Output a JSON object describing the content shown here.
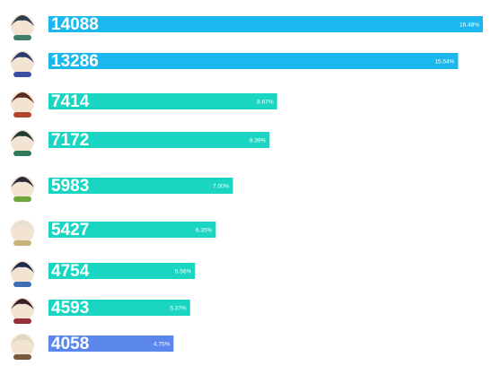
{
  "chart_data": {
    "type": "bar",
    "orientation": "horizontal",
    "categories": [
      null,
      null,
      null,
      null,
      null,
      null,
      null,
      null,
      null
    ],
    "values": [
      14088,
      13286,
      7414,
      7172,
      5983,
      5427,
      4754,
      4593,
      4058
    ],
    "colors": [
      "#1bb8ef",
      "#1bb8ef",
      "#19d5c1",
      "#19d5c1",
      "#19d5c1",
      "#19d5c1",
      "#19d5c1",
      "#19d5c1",
      "#5b87ec"
    ],
    "shares": [
      16.48,
      15.54,
      8.67,
      8.39,
      7.0,
      6.35,
      5.56,
      5.37,
      4.75
    ],
    "share_labels": [
      "16.48%",
      "15.54%",
      "8.67%",
      "8.39%",
      "7.00%",
      "6.35%",
      "5.56%",
      "5.37%",
      "4.75%"
    ]
  }
}
